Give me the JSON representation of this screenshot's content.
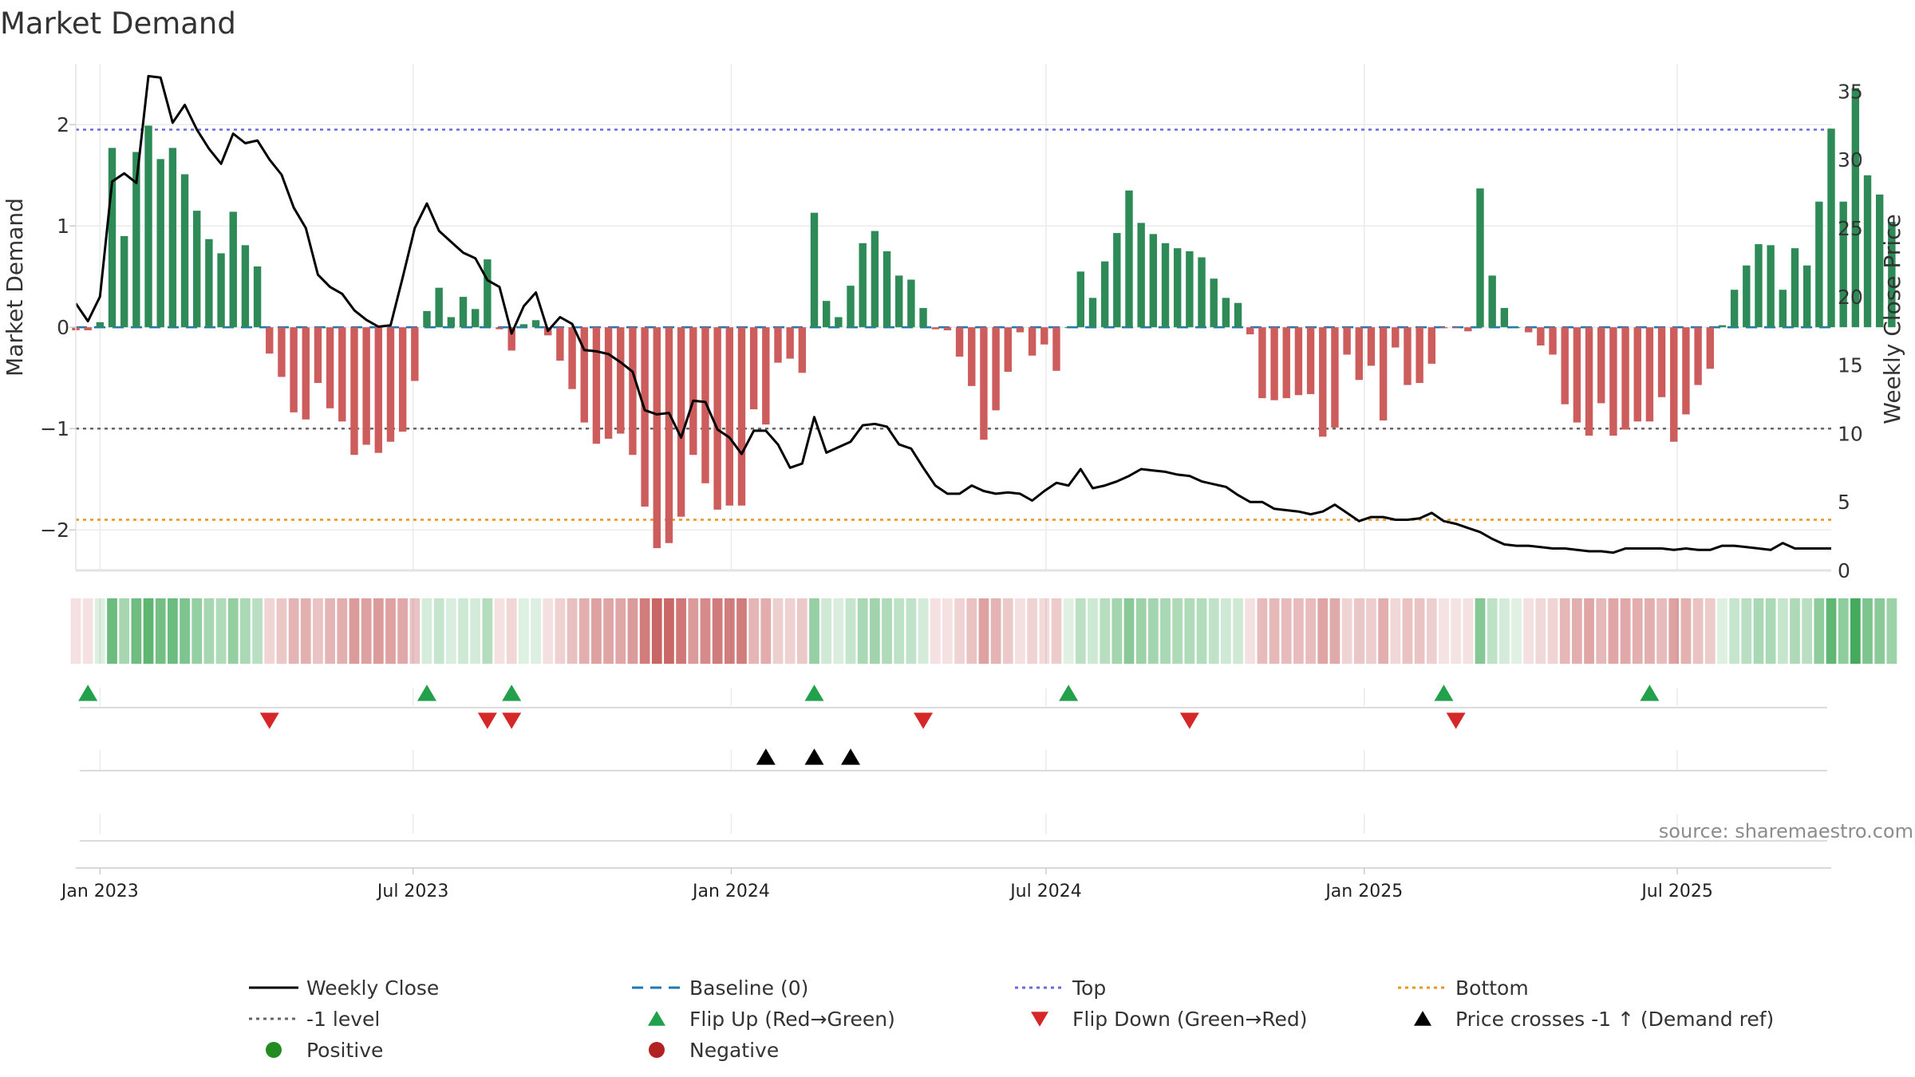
{
  "title": "Market Demand",
  "source_note": "source: sharemaestro.com",
  "colors": {
    "positive": "#2e8b57",
    "negative": "#cd5c5c",
    "close_line": "#000000",
    "baseline": "#1f77b4",
    "top_line": "#6a6ad8",
    "bottom_line": "#e89420",
    "minus1_line": "#666666",
    "flip_up": "#22a04b",
    "flip_down": "#d62728",
    "cross_marker": "#000000",
    "legend_positive": "#228b22",
    "legend_negative": "#b22222"
  },
  "chart_data": {
    "type": "bar+line",
    "title": "Market Demand",
    "ylabel_left": "Market Demand",
    "ylabel_right": "Weekly Close Price",
    "ylim_left": [
      -2.4,
      2.6
    ],
    "ylim_right": [
      0,
      37
    ],
    "yticks_left": [
      "2",
      "1",
      "0",
      "−1",
      "−2"
    ],
    "yticks_left_values": [
      2,
      1,
      0,
      -1,
      -2
    ],
    "yticks_right": [
      "35",
      "30",
      "25",
      "20",
      "15",
      "10",
      "5",
      "0"
    ],
    "yticks_right_values": [
      35,
      30,
      25,
      20,
      15,
      10,
      5,
      0
    ],
    "x_tick_labels": [
      "Jan 2023",
      "Jul 2023",
      "Jan 2024",
      "Jul 2024",
      "Jan 2025",
      "Jul 2025"
    ],
    "x_tick_dates": [
      "2023-01-01",
      "2023-07-01",
      "2024-01-01",
      "2024-07-01",
      "2025-01-01",
      "2025-07-01"
    ],
    "x_range": [
      "2022-12-18",
      "2025-09-28"
    ],
    "first_week": "2022-12-18",
    "top_level": 1.95,
    "bottom_level": -1.9,
    "minus1_level": -1.0,
    "baseline_level": 0,
    "demand": [
      -0.03,
      -0.03,
      0.05,
      1.77,
      0.9,
      1.73,
      1.99,
      1.66,
      1.77,
      1.51,
      1.15,
      0.87,
      0.73,
      1.14,
      0.81,
      0.6,
      -0.26,
      -0.49,
      -0.84,
      -0.91,
      -0.55,
      -0.8,
      -0.93,
      -1.26,
      -1.16,
      -1.24,
      -1.13,
      -1.03,
      -0.53,
      0.16,
      0.39,
      0.1,
      0.3,
      0.18,
      0.67,
      -0.02,
      -0.23,
      0.03,
      0.07,
      -0.08,
      -0.33,
      -0.61,
      -0.94,
      -1.15,
      -1.1,
      -1.05,
      -1.26,
      -1.77,
      -2.18,
      -2.13,
      -1.87,
      -1.26,
      -1.54,
      -1.8,
      -1.76,
      -1.76,
      -0.81,
      -0.96,
      -0.35,
      -0.31,
      -0.45,
      1.13,
      0.26,
      0.1,
      0.41,
      0.83,
      0.95,
      0.75,
      0.51,
      0.47,
      0.19,
      -0.02,
      -0.03,
      -0.29,
      -0.58,
      -1.11,
      -0.82,
      -0.44,
      -0.05,
      -0.28,
      -0.17,
      -0.43,
      0.0,
      0.55,
      0.29,
      0.65,
      0.93,
      1.35,
      1.03,
      0.92,
      0.83,
      0.78,
      0.75,
      0.69,
      0.48,
      0.29,
      0.24,
      -0.07,
      -0.7,
      -0.72,
      -0.7,
      -0.67,
      -0.66,
      -1.08,
      -0.99,
      -0.27,
      -0.52,
      -0.38,
      -0.92,
      -0.2,
      -0.57,
      -0.55,
      -0.36,
      -0.01,
      -0.01,
      -0.04,
      1.37,
      0.51,
      0.19,
      0.0,
      -0.05,
      -0.18,
      -0.27,
      -0.76,
      -0.94,
      -1.07,
      -0.75,
      -1.07,
      -1.01,
      -0.93,
      -0.93,
      -0.69,
      -1.13,
      -0.86,
      -0.57,
      -0.41,
      0.02,
      0.37,
      0.61,
      0.82,
      0.81,
      0.37,
      0.78,
      0.61,
      1.24,
      1.96,
      1.24,
      2.36,
      1.5,
      1.31,
      1.04
    ],
    "close": [
      19.5,
      18.2,
      20.0,
      28.4,
      29.0,
      28.3,
      36.1,
      36.0,
      32.7,
      34.0,
      32.2,
      30.8,
      29.7,
      31.9,
      31.2,
      31.4,
      30.0,
      28.9,
      26.5,
      25.0,
      21.6,
      20.7,
      20.2,
      19.0,
      18.3,
      17.8,
      17.9,
      21.4,
      25.0,
      26.8,
      24.8,
      24.0,
      23.2,
      22.8,
      21.2,
      20.7,
      17.3,
      19.3,
      20.3,
      17.5,
      18.5,
      18.0,
      16.1,
      16.0,
      15.8,
      15.2,
      14.5,
      11.7,
      11.4,
      11.5,
      9.7,
      12.4,
      12.3,
      10.3,
      9.7,
      8.5,
      10.2,
      10.2,
      9.2,
      7.5,
      7.8,
      11.2,
      8.6,
      9.0,
      9.4,
      10.6,
      10.7,
      10.5,
      9.2,
      8.9,
      7.5,
      6.2,
      5.6,
      5.6,
      6.2,
      5.8,
      5.6,
      5.7,
      5.6,
      5.1,
      5.8,
      6.4,
      6.2,
      7.4,
      6.0,
      6.2,
      6.5,
      6.9,
      7.4,
      7.3,
      7.2,
      7.0,
      6.9,
      6.5,
      6.3,
      6.1,
      5.5,
      5.0,
      5.0,
      4.5,
      4.4,
      4.3,
      4.1,
      4.3,
      4.8,
      4.2,
      3.6,
      3.9,
      3.9,
      3.7,
      3.7,
      3.8,
      4.2,
      3.6,
      3.4,
      3.1,
      2.8,
      2.3,
      1.9,
      1.8,
      1.8,
      1.7,
      1.6,
      1.6,
      1.5,
      1.4,
      1.4,
      1.3,
      1.6,
      1.6,
      1.6,
      1.6,
      1.5,
      1.6,
      1.5,
      1.5,
      1.8,
      1.8,
      1.7,
      1.6,
      1.5,
      2.0,
      1.6,
      1.6,
      1.6,
      1.6
    ],
    "flip_up_dates": [
      "2022-12-25",
      "2023-07-09",
      "2023-08-27",
      "2024-02-18",
      "2024-07-14",
      "2025-02-16",
      "2025-06-15"
    ],
    "flip_down_dates": [
      "2023-04-09",
      "2023-08-13",
      "2023-08-27",
      "2024-04-21",
      "2024-09-22",
      "2025-02-23"
    ],
    "price_cross_dates": [
      "2024-01-21",
      "2024-02-18",
      "2024-03-10"
    ],
    "legend": [
      {
        "label": "Weekly Close",
        "swatch": "solid-line"
      },
      {
        "label": "Baseline (0)",
        "swatch": "dashed-line"
      },
      {
        "label": "Top",
        "swatch": "dotted-line"
      },
      {
        "label": "Bottom",
        "swatch": "dotted-line"
      },
      {
        "label": "-1 level",
        "swatch": "dotted-line"
      },
      {
        "label": "Flip Up (Red→Green)",
        "swatch": "triangle-up"
      },
      {
        "label": "Flip Down (Green→Red)",
        "swatch": "triangle-down"
      },
      {
        "label": "Price crosses -1 ↑ (Demand ref)",
        "swatch": "triangle-up"
      },
      {
        "label": "Positive",
        "swatch": "dot"
      },
      {
        "label": "Negative",
        "swatch": "dot"
      }
    ]
  }
}
